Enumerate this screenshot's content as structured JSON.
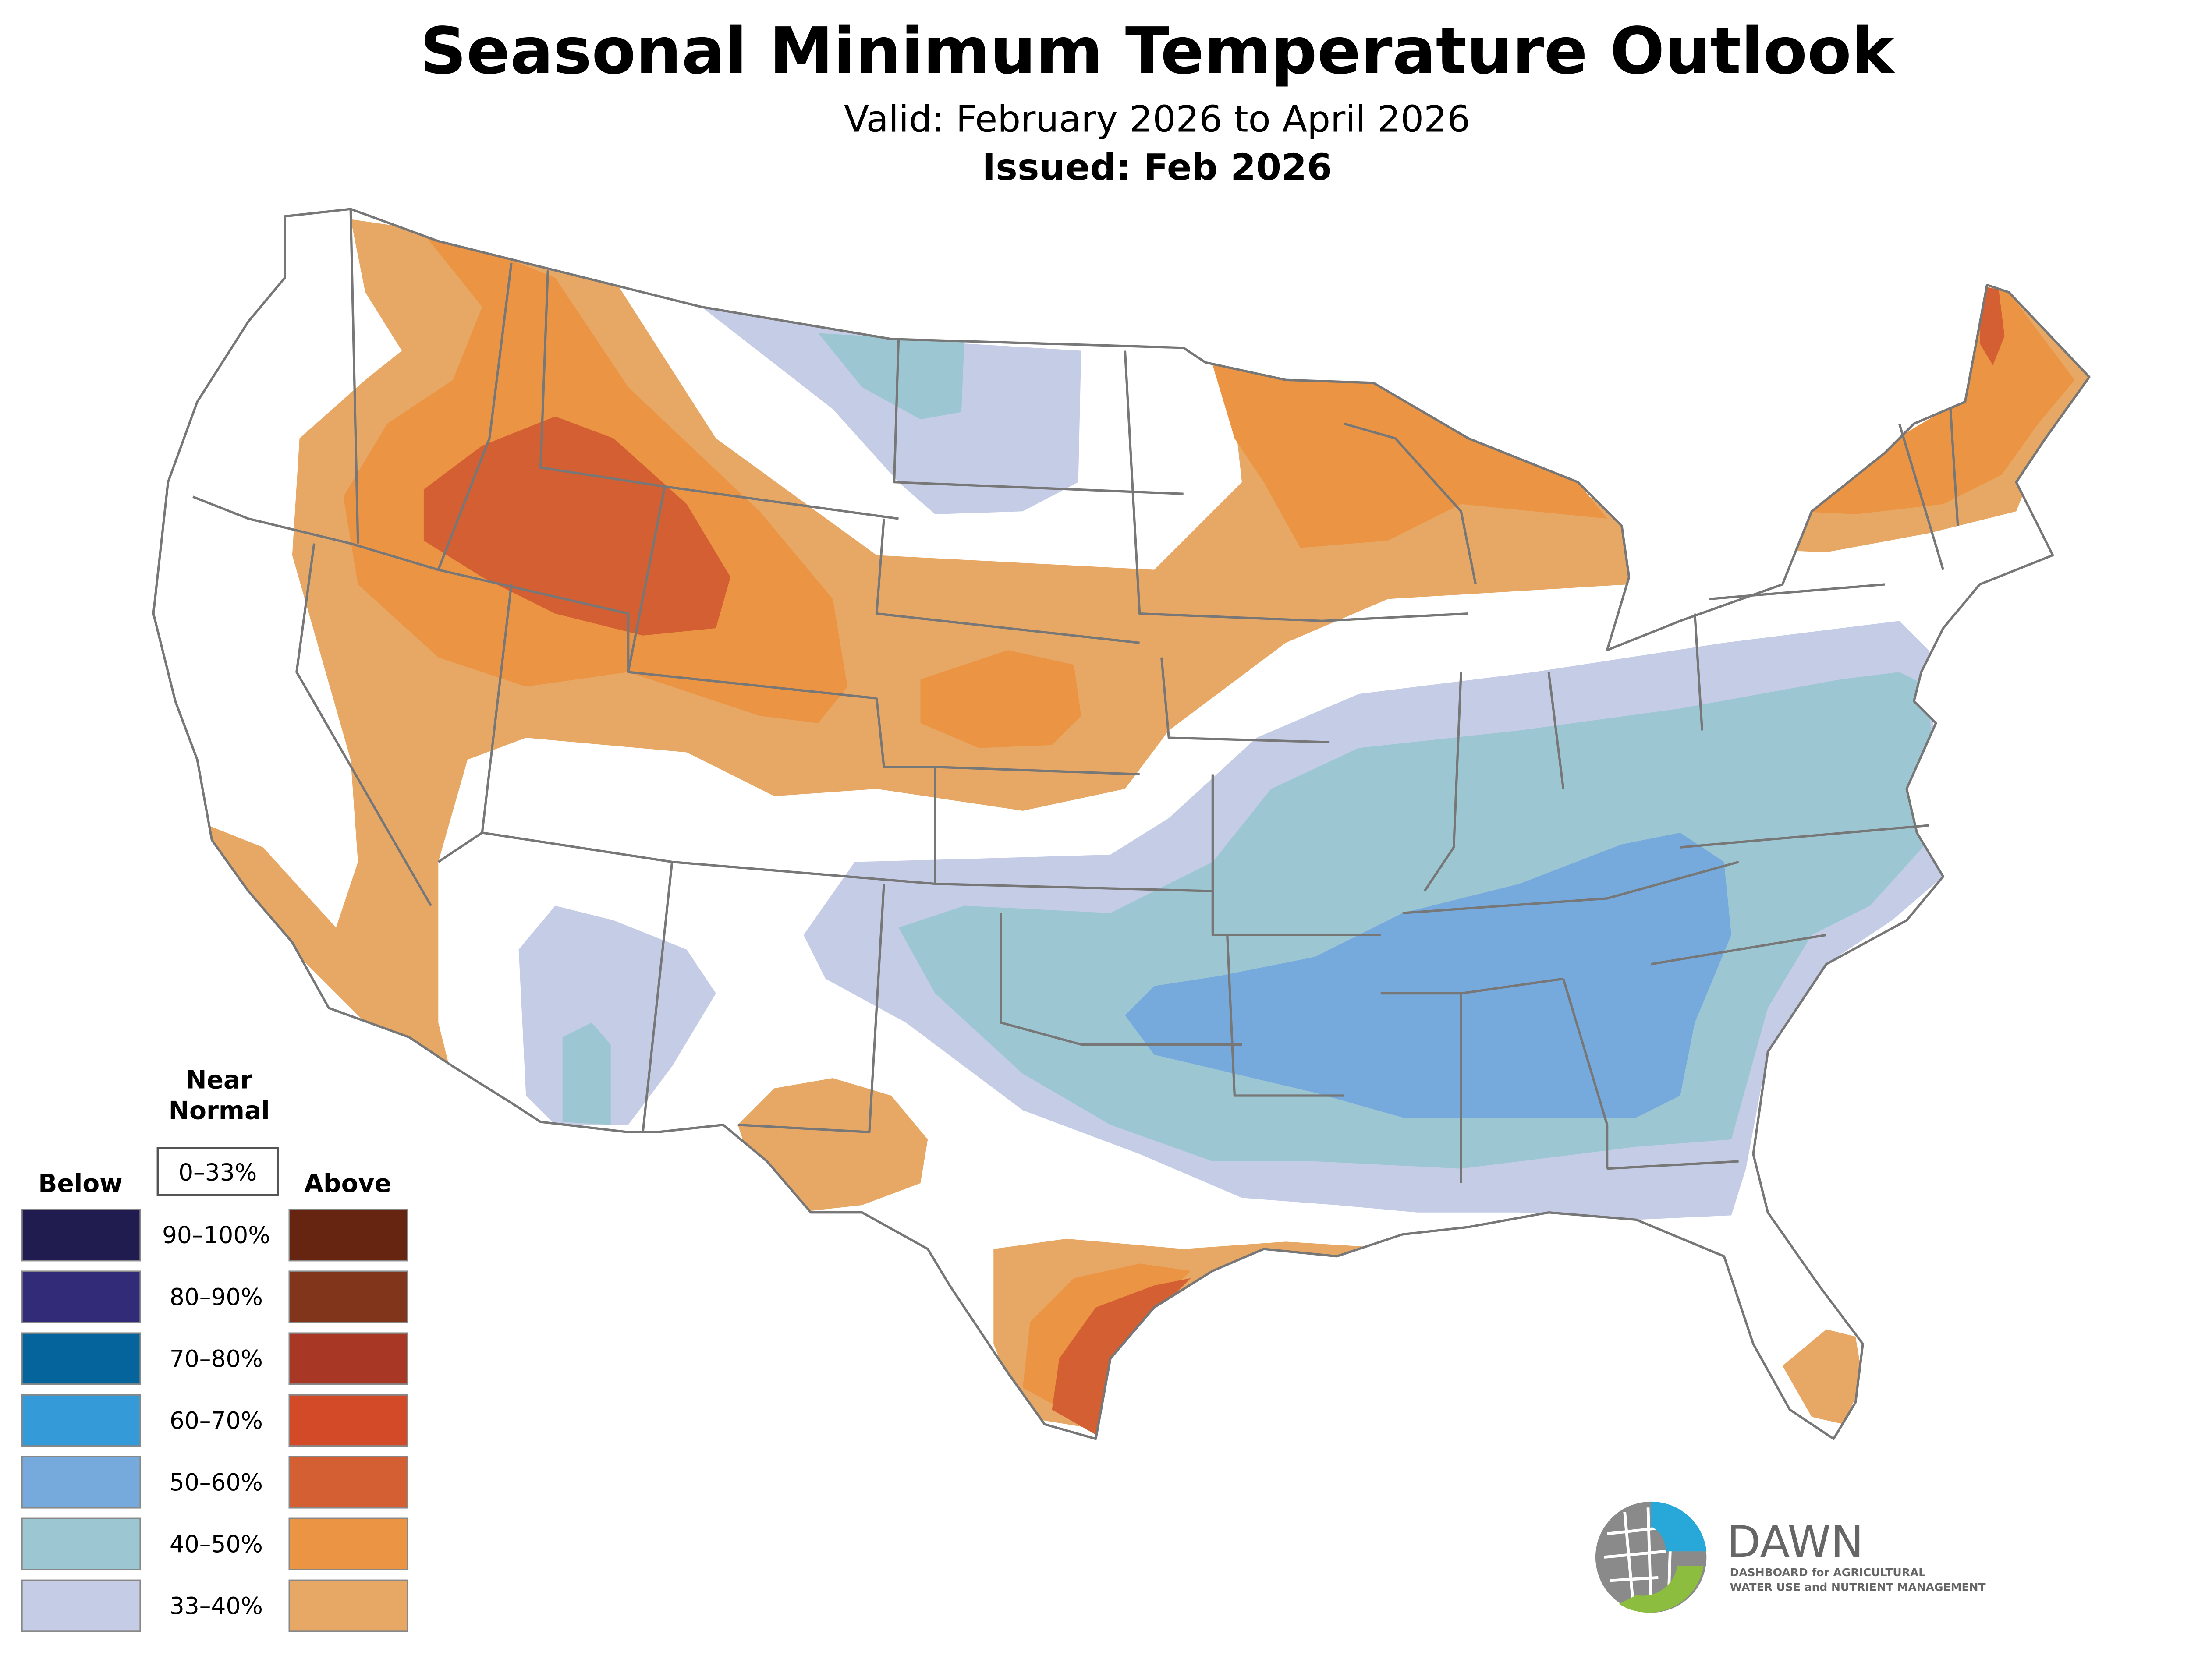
{
  "header": {
    "title": "Seasonal Minimum Temperature Outlook",
    "valid": "Valid: February 2026 to April 2026",
    "issued": "Issued: Feb 2026"
  },
  "legend": {
    "near_normal_line1": "Near",
    "near_normal_line2": "Normal",
    "near_normal_range": "0–33%",
    "below_label": "Below",
    "above_label": "Above",
    "rows": [
      {
        "range": "90–100%",
        "below_color": "#211c4f",
        "above_color": "#652511"
      },
      {
        "range": "80–90%",
        "below_color": "#322b78",
        "above_color": "#81361b"
      },
      {
        "range": "70–80%",
        "below_color": "#05649c",
        "above_color": "#a93726"
      },
      {
        "range": "60–70%",
        "below_color": "#349ad8",
        "above_color": "#d24a27"
      },
      {
        "range": "50–60%",
        "below_color": "#76aadd",
        "above_color": "#d35f32"
      },
      {
        "range": "40–50%",
        "below_color": "#9cc7d2",
        "above_color": "#eb9444"
      },
      {
        "range": "33–40%",
        "below_color": "#c5cce6",
        "above_color": "#e7a866"
      }
    ]
  },
  "logo": {
    "name": "DAWN",
    "tagline_line1": "DASHBOARD for AGRICULTURAL",
    "tagline_line2": "WATER USE and NUTRIENT MANAGEMENT"
  },
  "colors": {
    "above_33_40": "#e7a866",
    "above_40_50": "#eb9444",
    "above_50_60": "#d35f32",
    "below_33_40": "#c5cce6",
    "below_40_50": "#9cc7d2",
    "below_50_60": "#76aadd",
    "borders": "#777777"
  }
}
